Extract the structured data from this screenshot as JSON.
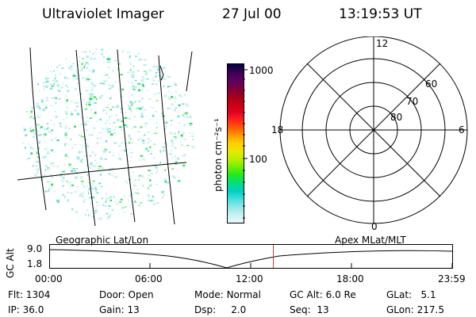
{
  "header": {
    "title": "Ultraviolet Imager",
    "date": "27 Jul 00",
    "time": "13:19:53 UT"
  },
  "colorbar": {
    "unit_label": "photon cm⁻²s⁻¹",
    "tick_labels": [
      "1000",
      "100"
    ],
    "colors": [
      "#000044",
      "#3a0052",
      "#5a0060",
      "#7a0040",
      "#a00020",
      "#c80010",
      "#e00020",
      "#ff2020",
      "#ff5a00",
      "#ff9a00",
      "#ffd000",
      "#e8e800",
      "#b8f000",
      "#70f000",
      "#20e820",
      "#00e080",
      "#00d0c0",
      "#40e0e0",
      "#90e8e8",
      "#c8f0f0",
      "#e8f8f8"
    ]
  },
  "polar": {
    "mlt_labels": [
      "12",
      "18",
      "6",
      "0"
    ],
    "lat_labels": [
      "60",
      "70",
      "80"
    ]
  },
  "timeline": {
    "left_label": "Geographic Lat/Lon",
    "right_label": "Apex MLat/MLT",
    "axis_title": "GC Alt",
    "alt_labels": [
      "9.0",
      "1.8"
    ],
    "time_ticks": [
      "00:00",
      "06:00",
      "12:00",
      "18:00",
      "23:59"
    ],
    "current_time_fraction": 0.555
  },
  "info": {
    "row1": [
      {
        "label": "Flt:",
        "value": "1304"
      },
      {
        "label": "Door:",
        "value": "Open"
      },
      {
        "label": "Mode:",
        "value": "Normal"
      },
      {
        "label": "GC Alt:",
        "value": "6.0 Re"
      },
      {
        "label": "GLat:",
        "value": "5.1"
      }
    ],
    "row2": [
      {
        "label": "IP:",
        "value": "36.0"
      },
      {
        "label": "Gain:",
        "value": "13"
      },
      {
        "label": "Dsp:",
        "value": "2.0"
      },
      {
        "label": "Seq:",
        "value": "13"
      },
      {
        "label": "GLon:",
        "value": "217.5"
      }
    ]
  }
}
